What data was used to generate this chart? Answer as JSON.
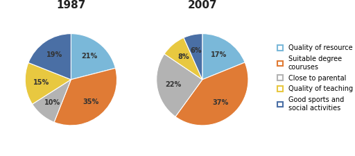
{
  "title_1987": "1987",
  "title_2007": "2007",
  "legend_labels": [
    "Quality of resource",
    "Suitable degree\ncouruses",
    "Close to parental",
    "Quality of teaching",
    "Good sports and\nsocial activities"
  ],
  "values_1987": [
    21,
    35,
    10,
    15,
    19
  ],
  "values_2007": [
    17,
    37,
    22,
    8,
    6
  ],
  "colors": [
    "#7ab8d9",
    "#e07b35",
    "#b3b3b3",
    "#e8c840",
    "#4a6fa5"
  ],
  "pct_labels_1987": [
    "21%",
    "35%",
    "10%",
    "15%",
    "19%"
  ],
  "pct_labels_2007": [
    "17%",
    "37%",
    "22%",
    "8%",
    "6%"
  ],
  "bg_color": "#ffffff",
  "label_color": "#333333",
  "title_fontsize": 11,
  "label_fontsize": 7,
  "legend_fontsize": 7,
  "startangle_1987": 90,
  "startangle_2007": 90
}
